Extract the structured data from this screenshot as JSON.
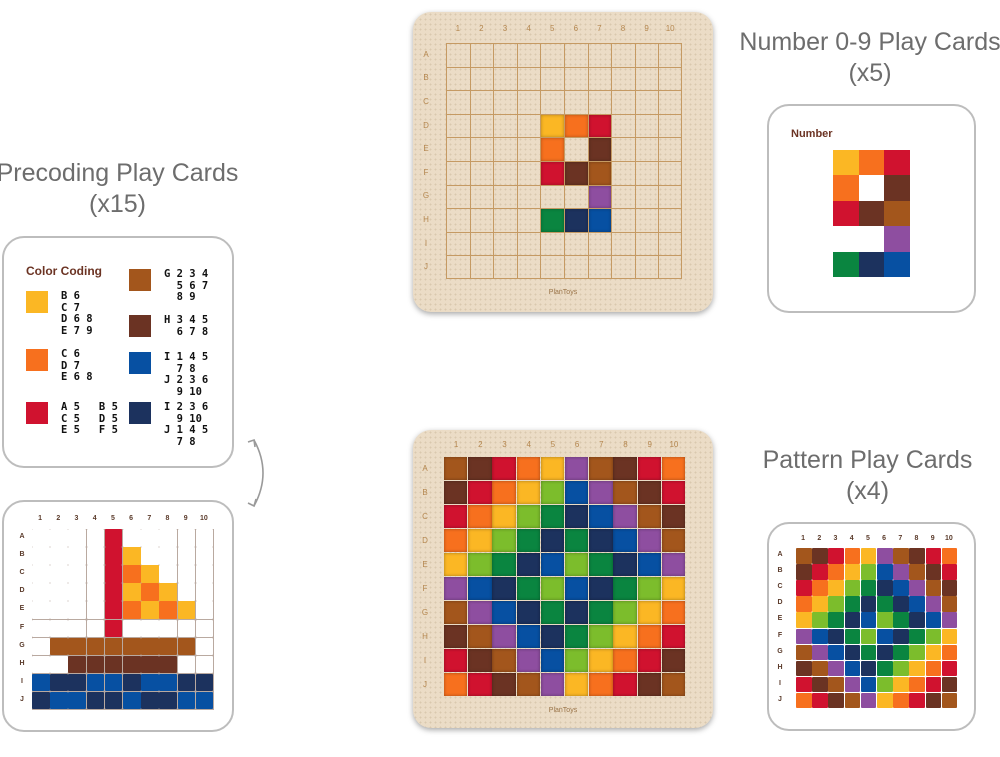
{
  "colors": {
    "W": "#ffffff",
    "Y": "#fbb724",
    "O": "#f7701e",
    "R": "#d0122f",
    "T": "#a3561c",
    "Br": "#6b3323",
    "P": "#8e4ea0",
    "L": "#7cbd2c",
    "G": "#0a8540",
    "B": "#0750a2",
    "N": "#1c325e"
  },
  "columns": [
    "1",
    "2",
    "3",
    "4",
    "5",
    "6",
    "7",
    "8",
    "9",
    "10"
  ],
  "rows": [
    "A",
    "B",
    "C",
    "D",
    "E",
    "F",
    "G",
    "H",
    "I",
    "J"
  ],
  "brand": "PlanToys",
  "titles": {
    "number": {
      "line1": "Number 0-9 Play Cards",
      "line2": "(x5)"
    },
    "precoding": {
      "line1": "Precoding Play Cards",
      "line2": "(x15)"
    },
    "pattern": {
      "line1": "Pattern Play Cards",
      "line2": "(x4)"
    }
  },
  "precoding_card": {
    "title": "Color Coding",
    "entries": [
      {
        "color": "Y",
        "text": "B 6\nC 7\nD 6 8\nE 7 9"
      },
      {
        "color": "O",
        "text": "C 6\nD 7\nE 6 8"
      },
      {
        "color": "R",
        "text": "A 5   B 5\nC 5   D 5\nE 5   F 5"
      },
      {
        "color": "T",
        "text": "G 2 3 4\n  5 6 7\n  8 9"
      },
      {
        "color": "Br",
        "text": "H 3 4 5\n  6 7 8"
      },
      {
        "color": "B",
        "text": "I 1 4 5\n  7 8\nJ 2 3 6\n  9 10"
      },
      {
        "color": "N",
        "text": "I 2 3 6\n  9 10\nJ 1 4 5\n  7 8"
      }
    ]
  },
  "boat_card": {
    "grid": [
      "W W W W R W W W W W",
      "W W W W R Y W W W W",
      "W W W W R O Y W W W",
      "W W W W R Y O Y W W",
      "W W W W R O Y O Y W",
      "W W W W R W W W W W",
      "W T T T T T T T T W",
      "W W Br Br Br Br Br Br W W",
      "B N N B B N B B N N",
      "N B B N N B N N B B"
    ]
  },
  "number_card": {
    "title": "Number",
    "grid": [
      "Y O R",
      "O W Br",
      "R Br T",
      "W W P",
      "G N B"
    ]
  },
  "number_board": {
    "placed": [
      {
        "row": 3,
        "col": 4,
        "c": "Y"
      },
      {
        "row": 3,
        "col": 5,
        "c": "O"
      },
      {
        "row": 3,
        "col": 6,
        "c": "R"
      },
      {
        "row": 4,
        "col": 4,
        "c": "O"
      },
      {
        "row": 4,
        "col": 6,
        "c": "Br"
      },
      {
        "row": 5,
        "col": 4,
        "c": "R"
      },
      {
        "row": 5,
        "col": 5,
        "c": "Br"
      },
      {
        "row": 5,
        "col": 6,
        "c": "T"
      },
      {
        "row": 6,
        "col": 6,
        "c": "P"
      },
      {
        "row": 7,
        "col": 4,
        "c": "G"
      },
      {
        "row": 7,
        "col": 5,
        "c": "N"
      },
      {
        "row": 7,
        "col": 6,
        "c": "B"
      }
    ]
  },
  "pattern": {
    "grid": [
      "T Br R O Y P T Br R O",
      "Br R O Y L B P T Br R",
      "R O Y L G N B P T Br",
      "O Y L G N G N B P T",
      "Y L G N B L G N B P",
      "P B N G L B N G L Y",
      "T P B N G N G L Y O",
      "Br T P B N G L Y O R",
      "R Br T P B L Y O R Br",
      "O R Br T P Y O R Br T"
    ]
  }
}
